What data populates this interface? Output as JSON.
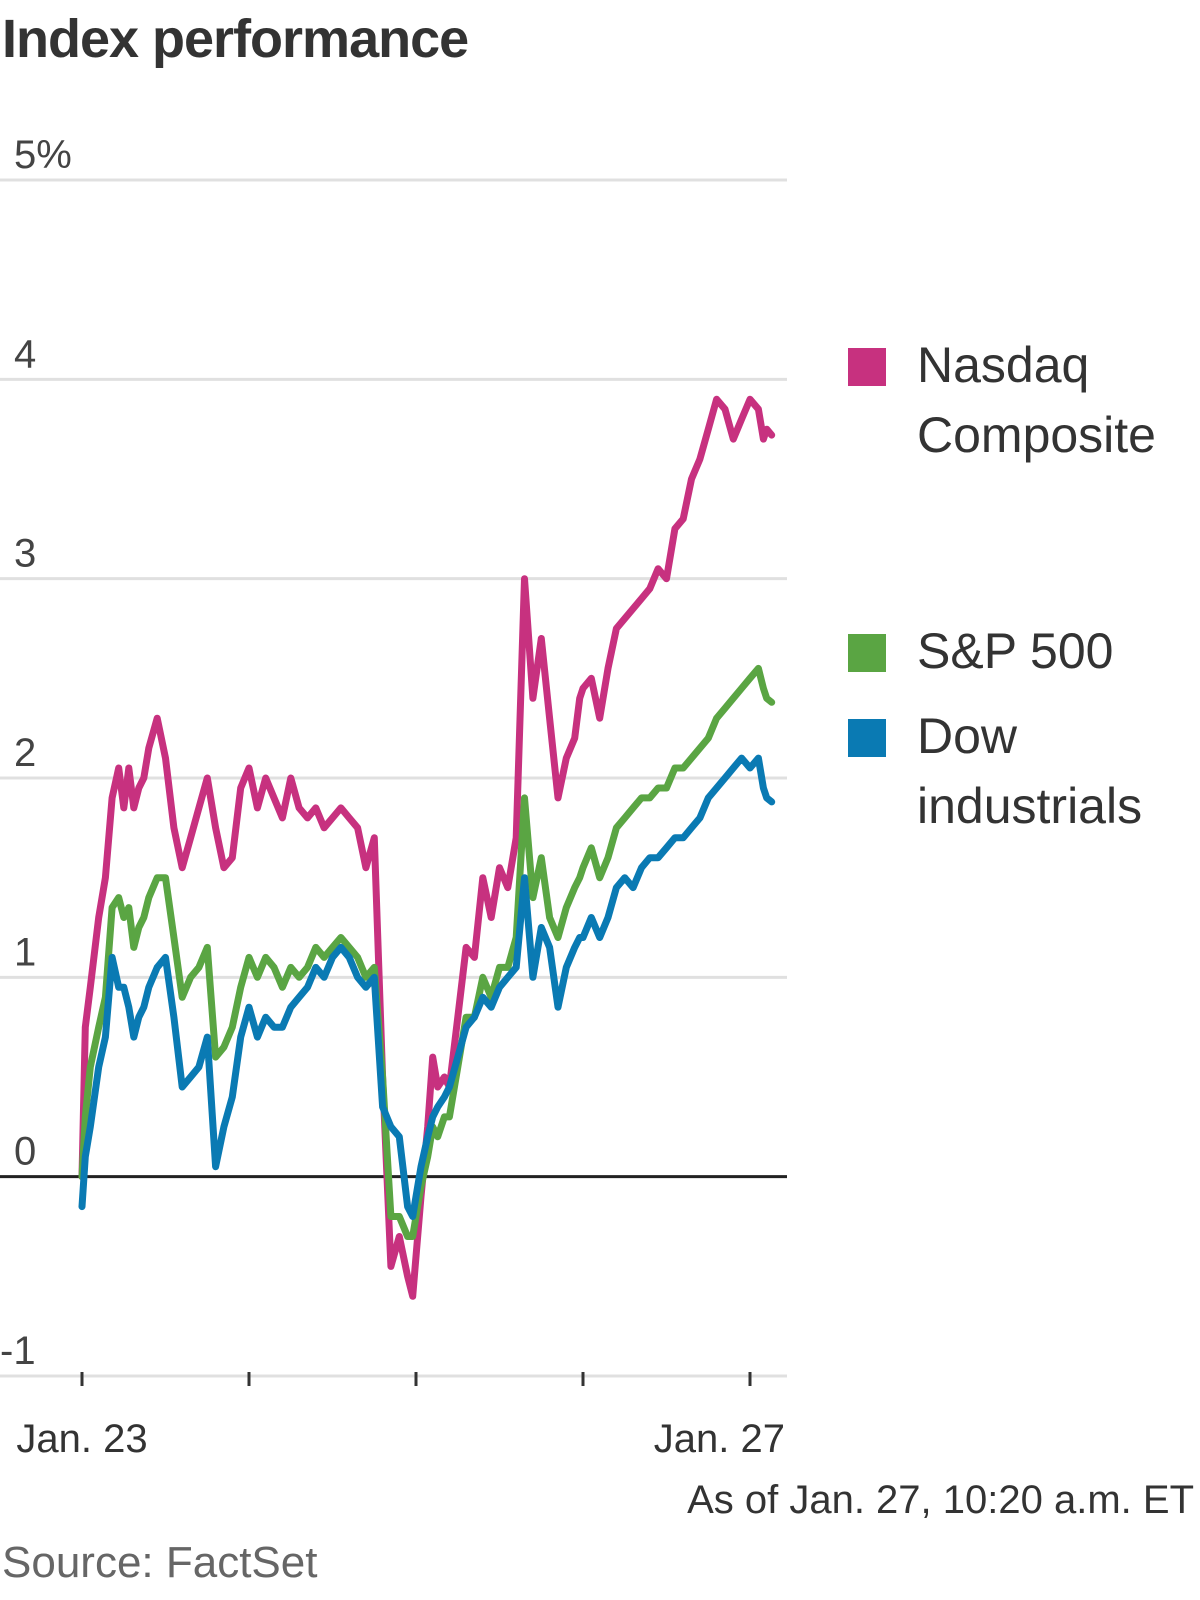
{
  "title": "Index performance",
  "as_of": "As of Jan. 27, 10:20 a.m. ET",
  "source": "Source: FactSet",
  "colors": {
    "nasdaq": "#c7317f",
    "sp500": "#5aa543",
    "dow": "#0a7ab3",
    "grid": "#e0e0e0",
    "zero": "#222222"
  },
  "legend": [
    {
      "key": "nasdaq",
      "label": "Nasdaq Composite"
    },
    {
      "key": "sp500",
      "label": "S&P 500"
    },
    {
      "key": "dow",
      "label": "Dow industrials"
    }
  ],
  "chart_data": {
    "type": "line",
    "title": "Index performance",
    "xlabel": "",
    "ylabel": "",
    "ylim": [
      -1,
      5
    ],
    "yticks": [
      -1,
      0,
      1,
      2,
      3,
      4,
      5
    ],
    "ytick_labels": [
      "-1",
      "0",
      "1",
      "2",
      "3",
      "4",
      "5%"
    ],
    "xlim": [
      0,
      4.2
    ],
    "xticks": [
      0,
      1,
      2,
      3,
      4
    ],
    "xtick_labels": [
      "Jan. 23",
      "",
      "",
      "",
      "Jan. 27"
    ],
    "series": [
      {
        "name": "Nasdaq Composite",
        "key": "nasdaq",
        "x": [
          0,
          0.02,
          0.05,
          0.1,
          0.14,
          0.18,
          0.22,
          0.25,
          0.28,
          0.31,
          0.34,
          0.37,
          0.4,
          0.45,
          0.5,
          0.55,
          0.6,
          0.65,
          0.7,
          0.75,
          0.8,
          0.85,
          0.9,
          0.95,
          1.0,
          1.05,
          1.1,
          1.15,
          1.2,
          1.25,
          1.3,
          1.35,
          1.4,
          1.45,
          1.5,
          1.55,
          1.6,
          1.65,
          1.7,
          1.75,
          1.8,
          1.85,
          1.9,
          1.95,
          1.98,
          2.0,
          2.03,
          2.07,
          2.1,
          2.13,
          2.17,
          2.2,
          2.25,
          2.3,
          2.35,
          2.4,
          2.45,
          2.5,
          2.55,
          2.6,
          2.65,
          2.7,
          2.75,
          2.8,
          2.85,
          2.9,
          2.95,
          2.98,
          3.0,
          3.05,
          3.1,
          3.15,
          3.2,
          3.25,
          3.3,
          3.35,
          3.4,
          3.45,
          3.5,
          3.55,
          3.6,
          3.65,
          3.7,
          3.75,
          3.8,
          3.85,
          3.9,
          3.95,
          4.0,
          4.05,
          4.08,
          4.1,
          4.13
        ],
        "y": [
          0.0,
          0.75,
          0.95,
          1.3,
          1.5,
          1.9,
          2.05,
          1.85,
          2.05,
          1.85,
          1.95,
          2.0,
          2.15,
          2.3,
          2.1,
          1.75,
          1.55,
          1.7,
          1.85,
          2.0,
          1.75,
          1.55,
          1.6,
          1.95,
          2.05,
          1.85,
          2.0,
          1.9,
          1.8,
          2.0,
          1.85,
          1.8,
          1.85,
          1.75,
          1.8,
          1.85,
          1.8,
          1.75,
          1.55,
          1.7,
          0.5,
          -0.45,
          -0.3,
          -0.5,
          -0.6,
          -0.4,
          -0.1,
          0.25,
          0.6,
          0.45,
          0.5,
          0.45,
          0.8,
          1.15,
          1.1,
          1.5,
          1.3,
          1.55,
          1.45,
          1.7,
          3.0,
          2.4,
          2.7,
          2.3,
          1.9,
          2.1,
          2.2,
          2.4,
          2.45,
          2.5,
          2.3,
          2.55,
          2.75,
          2.8,
          2.85,
          2.9,
          2.95,
          3.05,
          3.0,
          3.25,
          3.3,
          3.5,
          3.6,
          3.75,
          3.9,
          3.85,
          3.7,
          3.8,
          3.9,
          3.85,
          3.7,
          3.75,
          3.72
        ]
      },
      {
        "name": "S&P 500",
        "key": "sp500",
        "x": [
          0,
          0.02,
          0.05,
          0.1,
          0.14,
          0.18,
          0.22,
          0.25,
          0.28,
          0.31,
          0.34,
          0.37,
          0.4,
          0.45,
          0.5,
          0.55,
          0.6,
          0.65,
          0.7,
          0.75,
          0.8,
          0.85,
          0.9,
          0.95,
          1.0,
          1.05,
          1.1,
          1.15,
          1.2,
          1.25,
          1.3,
          1.35,
          1.4,
          1.45,
          1.5,
          1.55,
          1.6,
          1.65,
          1.7,
          1.75,
          1.8,
          1.85,
          1.9,
          1.95,
          1.98,
          2.0,
          2.03,
          2.07,
          2.1,
          2.13,
          2.17,
          2.2,
          2.25,
          2.3,
          2.35,
          2.4,
          2.45,
          2.5,
          2.55,
          2.6,
          2.65,
          2.7,
          2.75,
          2.8,
          2.85,
          2.9,
          2.95,
          2.98,
          3.0,
          3.05,
          3.1,
          3.15,
          3.2,
          3.25,
          3.3,
          3.35,
          3.4,
          3.45,
          3.5,
          3.55,
          3.6,
          3.65,
          3.7,
          3.75,
          3.8,
          3.85,
          3.9,
          3.95,
          4.0,
          4.05,
          4.08,
          4.1,
          4.13
        ],
        "y": [
          0.0,
          0.3,
          0.55,
          0.75,
          0.9,
          1.35,
          1.4,
          1.3,
          1.35,
          1.15,
          1.25,
          1.3,
          1.4,
          1.5,
          1.5,
          1.2,
          0.9,
          1.0,
          1.05,
          1.15,
          0.6,
          0.65,
          0.75,
          0.95,
          1.1,
          1.0,
          1.1,
          1.05,
          0.95,
          1.05,
          1.0,
          1.05,
          1.15,
          1.1,
          1.15,
          1.2,
          1.15,
          1.1,
          1.0,
          1.05,
          0.5,
          -0.2,
          -0.2,
          -0.3,
          -0.3,
          -0.2,
          -0.05,
          0.1,
          0.25,
          0.2,
          0.3,
          0.3,
          0.55,
          0.8,
          0.8,
          1.0,
          0.9,
          1.05,
          1.05,
          1.2,
          1.9,
          1.4,
          1.6,
          1.3,
          1.2,
          1.35,
          1.45,
          1.5,
          1.55,
          1.65,
          1.5,
          1.6,
          1.75,
          1.8,
          1.85,
          1.9,
          1.9,
          1.95,
          1.95,
          2.05,
          2.05,
          2.1,
          2.15,
          2.2,
          2.3,
          2.35,
          2.4,
          2.45,
          2.5,
          2.55,
          2.45,
          2.4,
          2.38
        ]
      },
      {
        "name": "Dow industrials",
        "key": "dow",
        "x": [
          0,
          0.02,
          0.05,
          0.1,
          0.14,
          0.18,
          0.22,
          0.25,
          0.28,
          0.31,
          0.34,
          0.37,
          0.4,
          0.45,
          0.5,
          0.55,
          0.6,
          0.65,
          0.7,
          0.75,
          0.8,
          0.85,
          0.9,
          0.95,
          1.0,
          1.05,
          1.1,
          1.15,
          1.2,
          1.25,
          1.3,
          1.35,
          1.4,
          1.45,
          1.5,
          1.55,
          1.6,
          1.65,
          1.7,
          1.75,
          1.8,
          1.85,
          1.9,
          1.95,
          1.98,
          2.0,
          2.03,
          2.07,
          2.1,
          2.13,
          2.17,
          2.2,
          2.25,
          2.3,
          2.35,
          2.4,
          2.45,
          2.5,
          2.55,
          2.6,
          2.65,
          2.7,
          2.75,
          2.8,
          2.85,
          2.9,
          2.95,
          2.98,
          3.0,
          3.05,
          3.1,
          3.15,
          3.2,
          3.25,
          3.3,
          3.35,
          3.4,
          3.45,
          3.5,
          3.55,
          3.6,
          3.65,
          3.7,
          3.75,
          3.8,
          3.85,
          3.9,
          3.95,
          4.0,
          4.05,
          4.08,
          4.1,
          4.13
        ],
        "y": [
          -0.15,
          0.1,
          0.25,
          0.55,
          0.7,
          1.1,
          0.95,
          0.95,
          0.85,
          0.7,
          0.8,
          0.85,
          0.95,
          1.05,
          1.1,
          0.8,
          0.45,
          0.5,
          0.55,
          0.7,
          0.05,
          0.25,
          0.4,
          0.7,
          0.85,
          0.7,
          0.8,
          0.75,
          0.75,
          0.85,
          0.9,
          0.95,
          1.05,
          1.0,
          1.1,
          1.15,
          1.1,
          1.0,
          0.95,
          1.0,
          0.35,
          0.25,
          0.2,
          -0.15,
          -0.2,
          -0.1,
          0.05,
          0.2,
          0.3,
          0.35,
          0.4,
          0.45,
          0.6,
          0.75,
          0.8,
          0.9,
          0.85,
          0.95,
          1.0,
          1.05,
          1.5,
          1.0,
          1.25,
          1.15,
          0.85,
          1.05,
          1.15,
          1.2,
          1.2,
          1.3,
          1.2,
          1.3,
          1.45,
          1.5,
          1.45,
          1.55,
          1.6,
          1.6,
          1.65,
          1.7,
          1.7,
          1.75,
          1.8,
          1.9,
          1.95,
          2.0,
          2.05,
          2.1,
          2.05,
          2.1,
          1.95,
          1.9,
          1.88
        ]
      }
    ]
  }
}
